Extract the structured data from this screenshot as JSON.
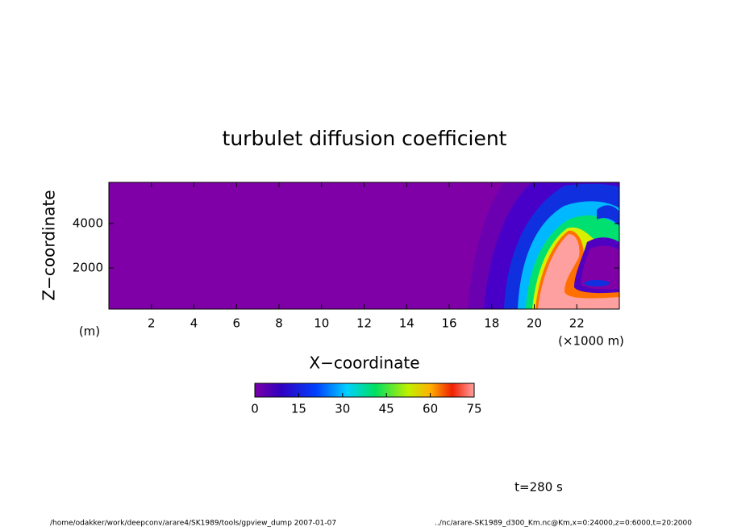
{
  "chart_data": {
    "type": "contour",
    "title": "turbulet diffusion coefficient",
    "x_label": "X−coordinate",
    "x_unit": "(×1000 m)",
    "y_label": "Z−coordinate",
    "y_unit": "(m)",
    "xlim": [
      0,
      24
    ],
    "xticks": [
      2,
      4,
      6,
      8,
      10,
      12,
      14,
      16,
      18,
      20,
      22
    ],
    "ylim": [
      150,
      5850
    ],
    "yticks": [
      2000,
      4000
    ],
    "colorbar_lim": [
      0,
      75
    ],
    "colorbar_ticks": [
      0,
      15,
      30,
      45,
      60,
      75
    ],
    "annotation": "t=280 s",
    "footer_left": "/home/odakker/work/deepconv/arare4/SK1989/tools/gpview_dump  2007-01-07",
    "footer_right": "../nc/arare-SK1989_d300_Km.nc@Km,x=0:24000,z=0:6000,t=20:2000"
  }
}
